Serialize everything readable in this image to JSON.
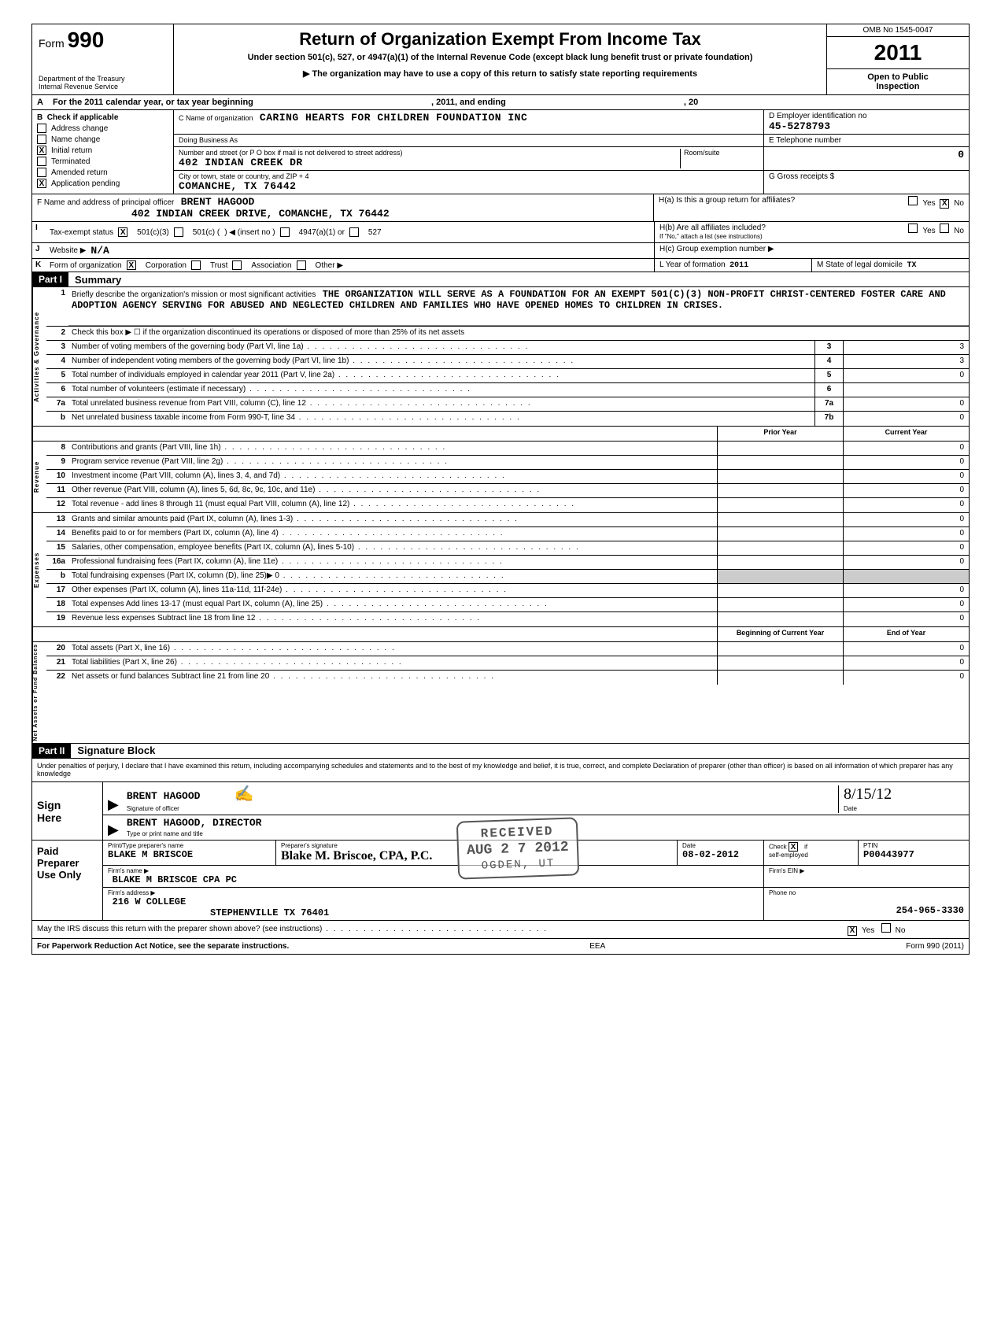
{
  "form": {
    "label": "Form",
    "number": "990",
    "dept1": "Department of the Treasury",
    "dept2": "Internal Revenue Service",
    "title": "Return of Organization Exempt From Income Tax",
    "subtitle": "Under section 501(c), 527, or 4947(a)(1) of the Internal Revenue Code (except black lung benefit trust or private foundation)",
    "arrowline": "▶   The organization may have to use a copy of this return to satisfy state reporting requirements",
    "omb": "OMB No 1545-0047",
    "year": "2011",
    "open": "Open to Public",
    "inspect": "Inspection"
  },
  "rowA": {
    "label": "A",
    "text1": "For the 2011 calendar year, or tax year beginning",
    "text2": ", 2011, and ending",
    "text3": ", 20"
  },
  "B": {
    "label": "B",
    "intro": "Check if applicable",
    "items": [
      {
        "label": "Address change",
        "checked": false
      },
      {
        "label": "Name change",
        "checked": false
      },
      {
        "label": "Initial return",
        "checked": true
      },
      {
        "label": "Terminated",
        "checked": false
      },
      {
        "label": "Amended return",
        "checked": false
      },
      {
        "label": "Application pending",
        "checked": true
      }
    ]
  },
  "C": {
    "nameLabel": "C  Name of organization",
    "name": "CARING HEARTS FOR CHILDREN FOUNDATION INC",
    "dbaLabel": "Doing Business As",
    "streetLabel": "Number and street (or P O  box if mail is not delivered to street address)",
    "street": "402 INDIAN CREEK DR",
    "cityLabel": "City or town, state or country, and ZIP + 4",
    "city": "COMANCHE, TX 76442",
    "roomLabel": "Room/suite"
  },
  "D": {
    "label": "D  Employer identification no",
    "val": "45-5278793"
  },
  "E": {
    "label": "E  Telephone number",
    "val": ""
  },
  "G": {
    "label": "G  Gross receipts   $",
    "val": "0"
  },
  "F": {
    "label": "F  Name and address of principal officer",
    "name": "BRENT HAGOOD",
    "addr": "402 INDIAN CREEK DRIVE, COMANCHE, TX 76442"
  },
  "H": {
    "a": "H(a)  Is this a group return for affiliates?",
    "a_yes": "Yes",
    "a_no": "No",
    "a_checked": "no",
    "b": "H(b)  Are all affiliates included?",
    "b_yes": "Yes",
    "b_no": "No",
    "b_note": "If \"No,\" attach a list  (see instructions)",
    "c": "H(c)  Group exemption number  ▶"
  },
  "I": {
    "lab": "I",
    "title": "Tax-exempt status",
    "c3": "501(c)(3)",
    "c": "501(c) (",
    "insert": ") ◀ (insert no )",
    "a1": "4947(a)(1) or",
    "s527": "527",
    "c3_checked": true
  },
  "J": {
    "lab": "J",
    "title": "Website  ▶",
    "val": "N/A"
  },
  "K": {
    "lab": "K",
    "title": "Form of organization",
    "corp": "Corporation",
    "trust": "Trust",
    "assoc": "Association",
    "other": "Other  ▶",
    "corp_checked": true,
    "L": "L  Year of formation",
    "Lval": "2011",
    "M": "M  State of legal domicile",
    "Mval": "TX"
  },
  "partI": {
    "tag": "Part I",
    "title": "Summary"
  },
  "gov": {
    "label": "Activities & Governance",
    "l1": "Briefly describe the organization's mission or most significant activities",
    "l1val": "THE ORGANIZATION WILL SERVE AS A FOUNDATION FOR AN EXEMPT 501(C)(3) NON-PROFIT CHRIST-CENTERED FOSTER CARE AND ADOPTION AGENCY SERVING FOR ABUSED AND NEGLECTED CHILDREN AND FAMILIES WHO HAVE OPENED HOMES TO CHILDREN IN CRISES.",
    "l2": "Check this box ▶ ☐ if the organization discontinued its operations or disposed of more than 25% of its net assets",
    "l3": "Number of voting members of the governing body (Part VI, line 1a)",
    "l4": "Number of independent voting members of the governing body (Part VI, line 1b)",
    "l5": "Total number of individuals employed in calendar year 2011 (Part V, line 2a)",
    "l6": "Total number of volunteers (estimate if necessary)",
    "l7a": "Total unrelated business revenue from Part VIII, column (C), line 12",
    "l7b": "Net unrelated business taxable income from Form 990-T, line 34",
    "v3": "3",
    "v4": "3",
    "v5": "0",
    "v6": "",
    "v7a": "0",
    "v7b": "0"
  },
  "twocol": {
    "prior": "Prior Year",
    "current": "Current Year",
    "boy": "Beginning of Current Year",
    "eoy": "End of Year"
  },
  "rev": {
    "label": "Revenue",
    "rows": [
      {
        "n": "8",
        "t": "Contributions and grants (Part VIII, line 1h)",
        "v": "0"
      },
      {
        "n": "9",
        "t": "Program service revenue (Part VIII, line 2g)",
        "v": "0"
      },
      {
        "n": "10",
        "t": "Investment income (Part VIII, column (A), lines 3, 4, and 7d)",
        "v": "0"
      },
      {
        "n": "11",
        "t": "Other revenue (Part VIII, column (A), lines 5, 6d, 8c, 9c, 10c, and 11e)",
        "v": "0"
      },
      {
        "n": "12",
        "t": "Total revenue - add lines 8 through 11 (must equal Part VIII, column (A), line 12)",
        "v": "0"
      }
    ]
  },
  "exp": {
    "label": "Expenses",
    "rows": [
      {
        "n": "13",
        "t": "Grants and similar amounts paid (Part IX, column (A), lines 1-3)",
        "v": "0"
      },
      {
        "n": "14",
        "t": "Benefits paid to or for members (Part IX, column (A), line 4)",
        "v": "0"
      },
      {
        "n": "15",
        "t": "Salaries, other compensation, employee benefits (Part IX, column (A), lines 5-10)",
        "v": "0"
      },
      {
        "n": "16a",
        "t": "Professional fundraising fees (Part IX, column (A), line 11e)",
        "v": "0"
      },
      {
        "n": "b",
        "t": "Total fundraising expenses (Part IX, column (D), line 25)▶                                           0",
        "v": ""
      },
      {
        "n": "17",
        "t": "Other expenses (Part IX, column (A), lines 11a-11d, 11f-24e)",
        "v": "0"
      },
      {
        "n": "18",
        "t": "Total expenses  Add lines 13-17 (must equal Part IX, column (A), line 25)",
        "v": "0"
      },
      {
        "n": "19",
        "t": "Revenue less expenses  Subtract line 18 from line 12",
        "v": "0"
      }
    ]
  },
  "net": {
    "label": "Net Assets or Fund Balances",
    "rows": [
      {
        "n": "20",
        "t": "Total assets (Part X, line 16)",
        "v": "0"
      },
      {
        "n": "21",
        "t": "Total liabilities (Part X, line 26)",
        "v": "0"
      },
      {
        "n": "22",
        "t": "Net assets or fund balances  Subtract line 21 from line 20",
        "v": "0"
      }
    ]
  },
  "partII": {
    "tag": "Part II",
    "title": "Signature Block"
  },
  "perjury": "Under penalties of perjury, I declare that I have examined this return, including accompanying schedules and statements  and to the best of my knowledge and belief, it is true, correct, and complete  Declaration of preparer (other than officer) is based on all information of which preparer has any knowledge",
  "sign": {
    "left1": "Sign",
    "left2": "Here",
    "name": "BRENT HAGOOD",
    "sigLabel": "Signature of officer",
    "date": "8/15/12",
    "dateLabel": "Date",
    "printed": "BRENT HAGOOD, DIRECTOR",
    "printedLabel": "Type or print name and title"
  },
  "prep": {
    "left1": "Paid",
    "left2": "Preparer",
    "left3": "Use Only",
    "nameLabel": "Print/Type preparer's name",
    "name": "BLAKE M BRISCOE",
    "sigLabel": "Preparer's signature",
    "sig": "Blake M. Briscoe, CPA, P.C.",
    "dateLabel": "Date",
    "date": "08-02-2012",
    "checkLabel": "Check",
    "ifLabel": "if",
    "selfLabel": "self-employed",
    "check_checked": true,
    "ptinLabel": "PTIN",
    "ptin": "P00443977",
    "firmNameLabel": "Firm's name     ▶",
    "firmName": "BLAKE M BRISCOE CPA PC",
    "firmEinLabel": "Firm's EIN   ▶",
    "firmAddrLabel": "Firm's address   ▶",
    "firmAddr1": "216 W COLLEGE",
    "firmAddr2": "STEPHENVILLE TX 76401",
    "phoneLabel": "Phone no",
    "phone": "254-965-3330"
  },
  "discuss": {
    "text": "May the IRS discuss this return with the preparer shown above? (see instructions)",
    "yes": "Yes",
    "no": "No",
    "checked": "yes"
  },
  "footer": {
    "left": "For Paperwork Reduction Act Notice, see the separate instructions.",
    "mid": "EEA",
    "right": "Form 990 (2011)"
  },
  "stamp": {
    "l1": "RECEIVED",
    "l2": "AUG 2 7 2012",
    "l3": "OGDEN, UT"
  }
}
